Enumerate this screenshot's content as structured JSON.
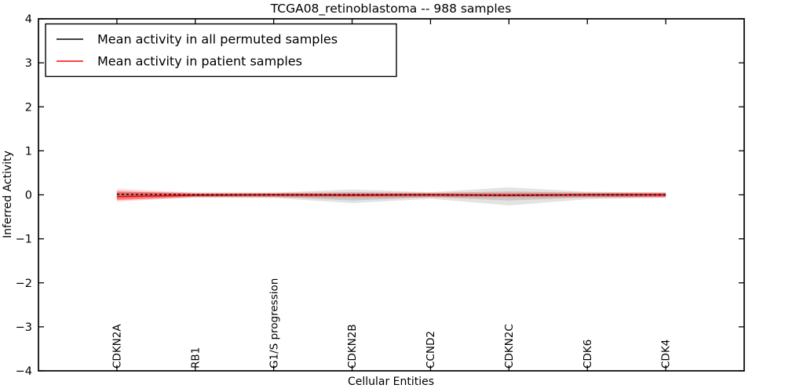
{
  "chart_data": {
    "type": "line",
    "title": "TCGA08_retinoblastoma -- 988 samples",
    "xlabel": "Cellular Entities",
    "ylabel": "Inferred Activity",
    "categories": [
      "CDKN2A",
      "RB1",
      "G1/S progression",
      "CDKN2B",
      "CCND2",
      "CDKN2C",
      "CDK6",
      "CDK4"
    ],
    "x_positions": [
      1,
      2,
      3,
      4,
      5,
      6,
      7,
      8
    ],
    "xlim": [
      0,
      9
    ],
    "ylim": [
      -4,
      4
    ],
    "yticks": [
      4,
      3,
      2,
      1,
      0,
      -1,
      -2,
      -3,
      -4
    ],
    "ytick_labels": [
      "4",
      "3",
      "2",
      "1",
      "0",
      "−1",
      "−2",
      "−3",
      "−4"
    ],
    "grid": false,
    "tick_direction": "in",
    "legend": {
      "position": "upper left",
      "entries": [
        {
          "label": "Mean activity in all permuted samples",
          "color": "#000000",
          "style": "dashed"
        },
        {
          "label": "Mean activity in patient samples",
          "color": "#ff0000",
          "style": "solid"
        }
      ]
    },
    "series": [
      {
        "name": "Mean activity in all permuted samples",
        "color": "#000000",
        "style": "dashed",
        "values": [
          0.01,
          0.0,
          0.0,
          0.0,
          0.0,
          -0.01,
          0.0,
          0.0
        ]
      },
      {
        "name": "Mean activity in patient samples",
        "color": "#ff0000",
        "style": "solid",
        "values": [
          -0.04,
          -0.01,
          0.0,
          -0.01,
          0.0,
          -0.01,
          0.0,
          0.0
        ]
      }
    ],
    "bands": [
      {
        "name": "permuted-envelope-outer",
        "color": "#a8a8a8",
        "opacity": 0.32,
        "upper": [
          0.07,
          0.05,
          0.05,
          0.12,
          0.06,
          0.17,
          0.07,
          0.05
        ],
        "lower": [
          -0.1,
          -0.06,
          -0.07,
          -0.19,
          -0.09,
          -0.24,
          -0.1,
          -0.06
        ]
      },
      {
        "name": "permuted-envelope-inner",
        "color": "#8f8f8f",
        "opacity": 0.32,
        "upper": [
          0.05,
          0.03,
          0.03,
          0.06,
          0.04,
          0.08,
          0.05,
          0.03
        ],
        "lower": [
          -0.06,
          -0.04,
          -0.04,
          -0.13,
          -0.05,
          -0.13,
          -0.06,
          -0.04
        ]
      },
      {
        "name": "patient-envelope-outer",
        "color": "#ff0000",
        "opacity": 0.18,
        "upper": [
          0.13,
          0.05,
          0.05,
          0.05,
          0.05,
          0.05,
          0.05,
          0.06
        ],
        "lower": [
          -0.15,
          -0.06,
          -0.06,
          -0.07,
          -0.06,
          -0.06,
          -0.06,
          -0.07
        ]
      },
      {
        "name": "patient-envelope-inner",
        "color": "#ff0000",
        "opacity": 0.32,
        "upper": [
          0.08,
          0.03,
          0.03,
          0.03,
          0.03,
          0.03,
          0.03,
          0.04
        ],
        "lower": [
          -0.12,
          -0.04,
          -0.04,
          -0.04,
          -0.04,
          -0.04,
          -0.04,
          -0.05
        ]
      }
    ],
    "colors": {
      "axis": "#000000",
      "background": "#ffffff",
      "patient_line": "#ff0000",
      "permuted_line": "#000000"
    }
  }
}
